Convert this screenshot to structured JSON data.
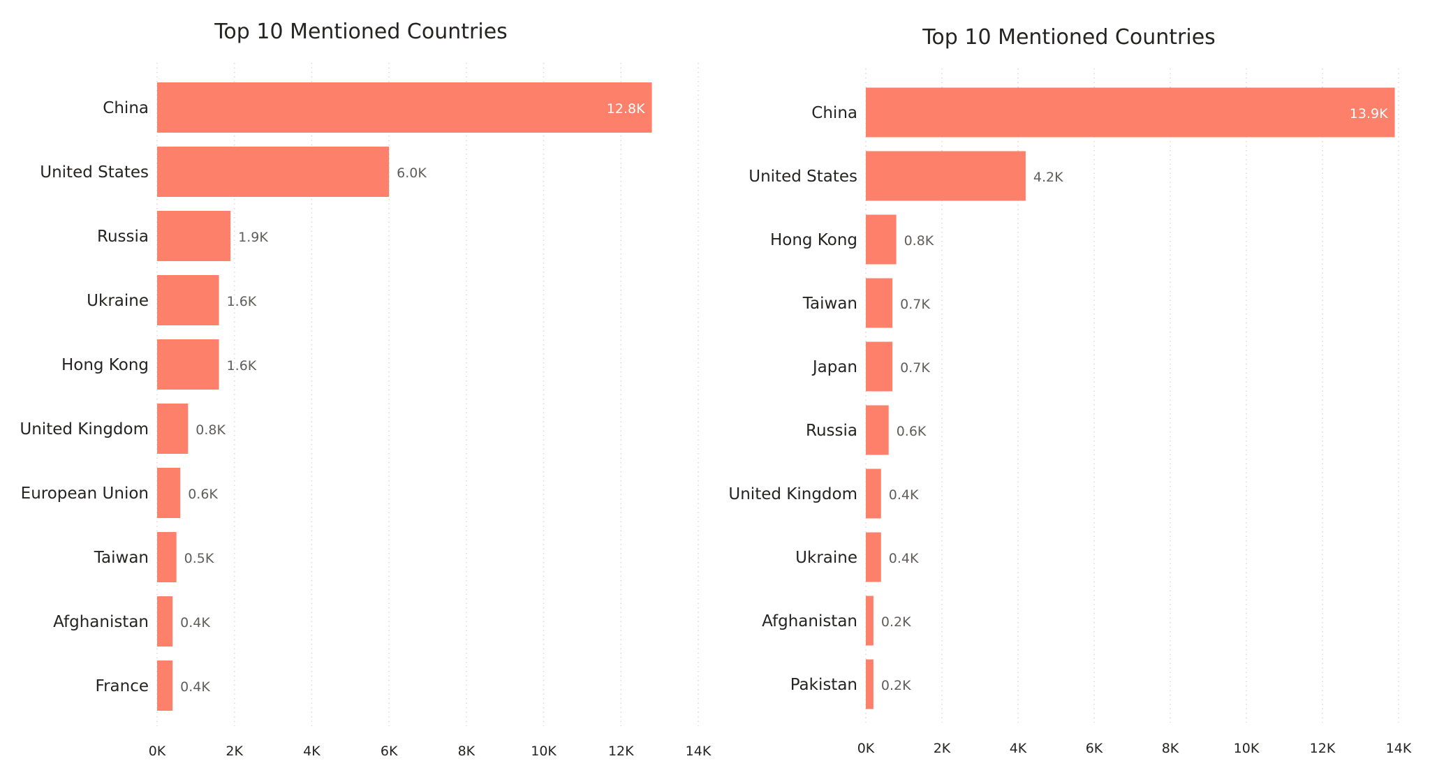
{
  "colors": {
    "bar": "#fd806b",
    "text": "#252423",
    "label": "#605e5c",
    "grid": "#d9d9d9"
  },
  "chart_data": [
    {
      "type": "bar",
      "orientation": "horizontal",
      "title": "Top 10 Mentioned Countries",
      "categories": [
        "China",
        "United States",
        "Russia",
        "Ukraine",
        "Hong Kong",
        "United Kingdom",
        "European Union",
        "Taiwan",
        "Afghanistan",
        "France"
      ],
      "values": [
        12800,
        6000,
        1900,
        1600,
        1600,
        800,
        600,
        500,
        400,
        400
      ],
      "data_labels": [
        "12.8K",
        "6.0K",
        "1.9K",
        "1.6K",
        "1.6K",
        "0.8K",
        "0.6K",
        "0.5K",
        "0.4K",
        "0.4K"
      ],
      "xlim": [
        0,
        14000
      ],
      "x_ticks": [
        "0K",
        "2K",
        "4K",
        "6K",
        "8K",
        "10K",
        "12K",
        "14K"
      ],
      "grid": true,
      "xlabel": "",
      "ylabel": ""
    },
    {
      "type": "bar",
      "orientation": "horizontal",
      "title": "Top 10 Mentioned Countries",
      "categories": [
        "China",
        "United States",
        "Hong Kong",
        "Taiwan",
        "Japan",
        "Russia",
        "United Kingdom",
        "Ukraine",
        "Afghanistan",
        "Pakistan"
      ],
      "values": [
        13900,
        4200,
        800,
        700,
        700,
        600,
        400,
        400,
        200,
        200
      ],
      "data_labels": [
        "13.9K",
        "4.2K",
        "0.8K",
        "0.7K",
        "0.7K",
        "0.6K",
        "0.4K",
        "0.4K",
        "0.2K",
        "0.2K"
      ],
      "xlim": [
        0,
        14000
      ],
      "x_ticks": [
        "0K",
        "2K",
        "4K",
        "6K",
        "8K",
        "10K",
        "12K",
        "14K"
      ],
      "grid": true,
      "xlabel": "",
      "ylabel": ""
    }
  ]
}
